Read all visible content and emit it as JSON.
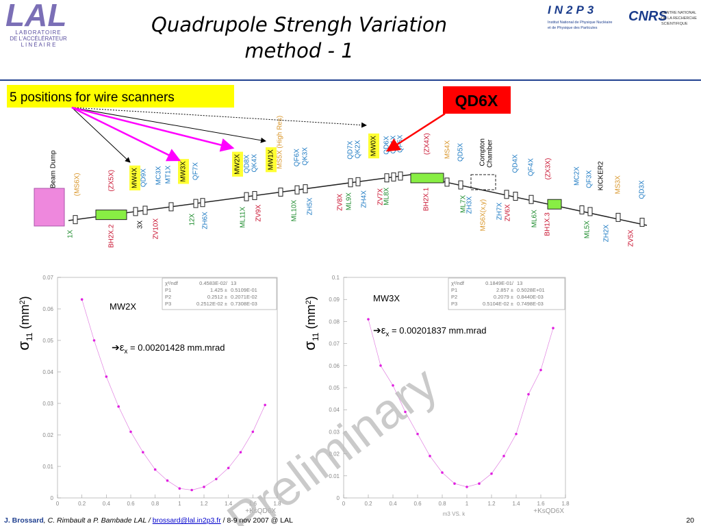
{
  "header": {
    "title": [
      "Quadrupole Strengh Variation",
      "method - 1"
    ],
    "lal": {
      "logo": "LAL",
      "lines": [
        "LABORATOIRE",
        "DE L'ACCÉLÉRATEUR",
        "L I N É A I R E"
      ]
    },
    "in2p3": {
      "logo": "IN2P3",
      "lines": [
        "Institut National de Physique Nucléaire",
        "et de Physique des Particules"
      ]
    },
    "cnrs": {
      "logo": "CNRS",
      "lines": [
        "CENTRE NATIONAL",
        "DE LA RECHERCHE",
        "SCIENTIFIQUE"
      ]
    }
  },
  "callouts": {
    "wire_scanners": "5 positions for wire scanners",
    "quad": "QD6X"
  },
  "beamline": {
    "top_labels": [
      "Beam Dump",
      "(MS6X)",
      "(ZX5X)",
      "MW4X",
      "QD9X",
      "MC3X",
      "MT1X",
      "MW3X",
      "QF7X",
      "MW2X",
      "QD8X",
      "QK4X",
      "MW1X",
      "MS5X (High Res)",
      "QF6X",
      "QK3X",
      "QD7X",
      "QK2X",
      "MW0X",
      "QD6X",
      "QK1X",
      "QF5X",
      "(ZX4X)",
      "MS4X",
      "QD5X",
      "Compton",
      "Chamber",
      "QD4X",
      "QF4X",
      "(ZX3X)",
      "MC2X",
      "QF3X",
      "KICKER2",
      "MS3X",
      "QD3X"
    ],
    "bottom_labels": [
      "1X",
      "BH2X.2",
      "3X",
      "ZV10X",
      "12X",
      "ZH6X",
      "ML11X",
      "ZV9X",
      "ML10X",
      "ZH5X",
      "ZV8X",
      "ML9X",
      "ZH4X",
      "ZV7X",
      "ML8X",
      "BH2X.1",
      "ML7X",
      "ZH3X",
      "MS6X(x,y)",
      "ZH7X",
      "ZV6X",
      "ML6X",
      "BH1X.3",
      "ML5X",
      "ZH2X",
      "ZV5X"
    ]
  },
  "chart_data": [
    {
      "type": "scatter",
      "color": "#e020e0",
      "x": [
        0.2,
        0.3,
        0.4,
        0.5,
        0.6,
        0.7,
        0.8,
        0.9,
        1.0,
        1.1,
        1.2,
        1.3,
        1.4,
        1.5,
        1.6,
        1.7
      ],
      "values": [
        0.063,
        0.05,
        0.0385,
        0.029,
        0.021,
        0.0145,
        0.009,
        0.0055,
        0.003,
        0.0025,
        0.0035,
        0.006,
        0.0095,
        0.0145,
        0.021,
        0.0295
      ],
      "xlim": [
        0,
        1.8
      ],
      "ylim": [
        0,
        0.07
      ],
      "xticks": [
        0,
        0.2,
        0.4,
        0.6,
        0.8,
        1,
        1.2,
        1.4,
        1.6,
        1.8
      ],
      "yticks": [
        0,
        0.01,
        0.02,
        0.03,
        0.04,
        0.05,
        0.06,
        0.07
      ],
      "ylabel": {
        "symbol": "σ",
        "sub": "11",
        "unit": " (mm",
        "sup": "2",
        "close": ")"
      },
      "xlabel": "+KsQD6X",
      "label": "MW2X",
      "emittance": {
        "arrow": "➔",
        "symbol": "ε",
        "sub": "x",
        "text": " = 0.00201428 mm.mrad"
      },
      "stats": [
        [
          "χ²/ndf",
          "0.4583E-02/",
          "13"
        ],
        [
          "P1",
          "1.425 ±",
          "0.5109E-01"
        ],
        [
          "P2",
          "0.2512 ±",
          "0.2071E-02"
        ],
        [
          "P3",
          "0.2512E-02 ±",
          "0.7308E-03"
        ]
      ]
    },
    {
      "type": "scatter",
      "color": "#e020e0",
      "x": [
        0.2,
        0.3,
        0.4,
        0.5,
        0.6,
        0.7,
        0.8,
        0.9,
        1.0,
        1.1,
        1.2,
        1.3,
        1.4,
        1.5,
        1.6,
        1.7
      ],
      "values": [
        0.081,
        0.06,
        0.051,
        0.039,
        0.029,
        0.019,
        0.0115,
        0.0065,
        0.005,
        0.0065,
        0.011,
        0.019,
        0.029,
        0.047,
        0.058,
        0.077
      ],
      "xlim": [
        0,
        1.8
      ],
      "ylim": [
        0,
        0.1
      ],
      "xticks": [
        0,
        0.2,
        0.4,
        0.6,
        0.8,
        1,
        1.2,
        1.4,
        1.6,
        1.8
      ],
      "yticks": [
        0,
        0.01,
        0.02,
        0.03,
        0.04,
        0.05,
        0.06,
        0.07,
        0.08,
        0.09,
        0.1
      ],
      "ylabel": {
        "symbol": "σ",
        "sub": "11",
        "unit": " (mm",
        "sup": "2",
        "close": ")"
      },
      "xlabel": "+KsQD6X",
      "caption": "m3 VS. k",
      "label": "MW3X",
      "emittance": {
        "arrow": "➔",
        "symbol": "ε",
        "sub": "x",
        "text": " = 0.00201837 mm.mrad"
      },
      "stats": [
        [
          "χ²/ndf",
          "0.1849E-01/",
          "13"
        ],
        [
          "P1",
          "2.857 ±",
          "0.5028E+01"
        ],
        [
          "P2",
          "0.2079 ±",
          "0.8440E-03"
        ],
        [
          "P3",
          "0.5104E-02 ±",
          "0.7498E-03"
        ]
      ]
    }
  ],
  "watermark": "Preliminary",
  "footer": {
    "author": "J. Brossard",
    "coauthors": ", C. Rimbault a P. Bambade LAL / ",
    "email": "brossard@lal.in2p3.fr",
    "event": " / 8-9 nov 2007 @ LAL",
    "page": "20"
  }
}
